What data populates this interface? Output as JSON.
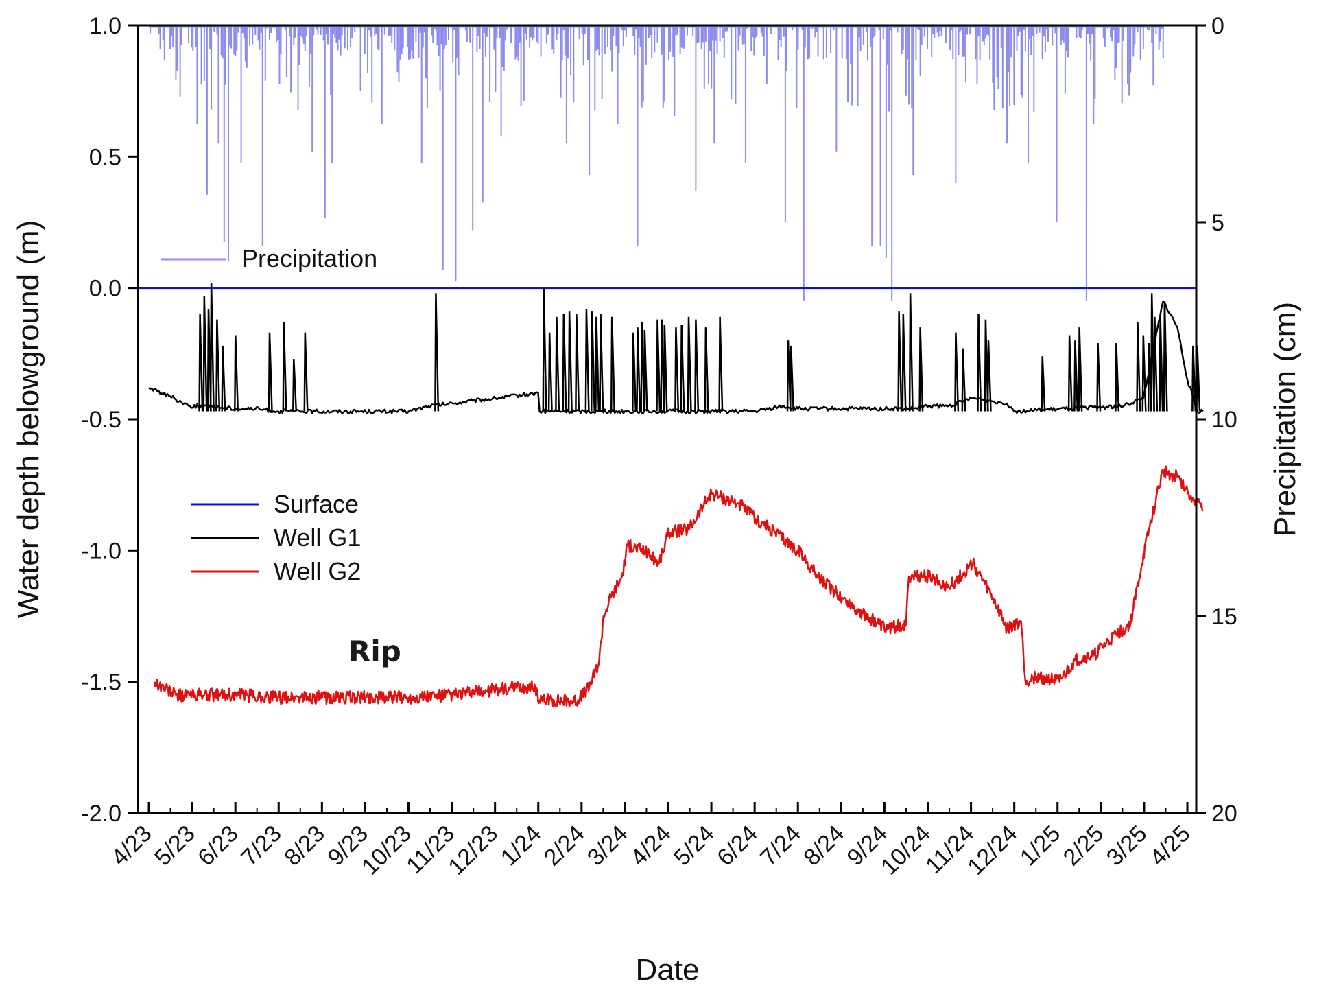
{
  "chart_data": {
    "type": "line",
    "xlabel": "Date",
    "ylabel": "Water depth belowground (m)",
    "y2label": "Precipitation (cm)",
    "annotation": "Rip",
    "ylim": [
      -2.0,
      1.0
    ],
    "y2lim": [
      20,
      0
    ],
    "y2_inverted": true,
    "x_tick_labels": [
      "4/23",
      "5/23",
      "6/23",
      "7/23",
      "8/23",
      "9/23",
      "10/23",
      "11/23",
      "12/23",
      "1/24",
      "2/24",
      "3/24",
      "4/24",
      "5/24",
      "6/24",
      "7/24",
      "8/24",
      "9/24",
      "10/24",
      "11/24",
      "12/24",
      "1/25",
      "2/25",
      "3/25",
      "4/25"
    ],
    "y_tick_labels": [
      "1.0",
      "0.5",
      "0.0",
      "-0.5",
      "-1.0",
      "-1.5",
      "-2.0"
    ],
    "y2_tick_labels": [
      "0",
      "5",
      "10",
      "15",
      "20"
    ],
    "legend": [
      {
        "name": "Surface",
        "color": "#1010c8"
      },
      {
        "name": "Well G1",
        "color": "#000000"
      },
      {
        "name": "Well G2",
        "color": "#e01010"
      }
    ],
    "precip_legend": {
      "name": "Precipitation",
      "color": "#8c8cf0"
    },
    "colors": {
      "surface": "#1010c8",
      "g1": "#000000",
      "g2": "#e01010",
      "precip": "#8c8cf0"
    },
    "series": [
      {
        "name": "Surface",
        "x_start": "2023-04-01",
        "x_end": "2025-04-01",
        "values": [
          0.0,
          0.0
        ]
      },
      {
        "name": "Well G2",
        "points": [
          [
            "2023-04-05",
            -1.5
          ],
          [
            "2023-04-20",
            -1.55
          ],
          [
            "2023-05-10",
            -1.55
          ],
          [
            "2023-06-01",
            -1.55
          ],
          [
            "2023-07-01",
            -1.56
          ],
          [
            "2023-08-01",
            -1.56
          ],
          [
            "2023-09-01",
            -1.56
          ],
          [
            "2023-10-01",
            -1.56
          ],
          [
            "2023-11-01",
            -1.55
          ],
          [
            "2023-12-01",
            -1.53
          ],
          [
            "2023-12-29",
            -1.52
          ],
          [
            "2024-01-01",
            -1.57
          ],
          [
            "2024-01-28",
            -1.57
          ],
          [
            "2024-02-05",
            -1.52
          ],
          [
            "2024-02-12",
            -1.42
          ],
          [
            "2024-02-15",
            -1.25
          ],
          [
            "2024-02-20",
            -1.18
          ],
          [
            "2024-02-28",
            -1.1
          ],
          [
            "2024-03-03",
            -0.98
          ],
          [
            "2024-03-15",
            -1.0
          ],
          [
            "2024-03-25",
            -1.05
          ],
          [
            "2024-04-01",
            -0.93
          ],
          [
            "2024-04-15",
            -0.92
          ],
          [
            "2024-04-25",
            -0.83
          ],
          [
            "2024-05-01",
            -0.78
          ],
          [
            "2024-05-10",
            -0.8
          ],
          [
            "2024-05-20",
            -0.82
          ],
          [
            "2024-06-01",
            -0.88
          ],
          [
            "2024-06-15",
            -0.93
          ],
          [
            "2024-07-01",
            -1.0
          ],
          [
            "2024-07-15",
            -1.1
          ],
          [
            "2024-08-01",
            -1.18
          ],
          [
            "2024-08-15",
            -1.24
          ],
          [
            "2024-09-01",
            -1.3
          ],
          [
            "2024-09-15",
            -1.28
          ],
          [
            "2024-09-17",
            -1.1
          ],
          [
            "2024-10-01",
            -1.1
          ],
          [
            "2024-10-15",
            -1.14
          ],
          [
            "2024-11-01",
            -1.05
          ],
          [
            "2024-11-15",
            -1.18
          ],
          [
            "2024-11-25",
            -1.3
          ],
          [
            "2024-12-05",
            -1.27
          ],
          [
            "2024-12-08",
            -1.5
          ],
          [
            "2024-12-15",
            -1.48
          ],
          [
            "2025-01-01",
            -1.5
          ],
          [
            "2025-01-12",
            -1.42
          ],
          [
            "2025-01-25",
            -1.4
          ],
          [
            "2025-02-10",
            -1.32
          ],
          [
            "2025-02-20",
            -1.28
          ],
          [
            "2025-02-28",
            -1.05
          ],
          [
            "2025-03-10",
            -0.8
          ],
          [
            "2025-03-15",
            -0.7
          ],
          [
            "2025-03-25",
            -0.72
          ],
          [
            "2025-04-05",
            -0.8
          ],
          [
            "2025-04-12",
            -0.85
          ]
        ]
      },
      {
        "name": "Well G1",
        "baseline": -0.47,
        "points": [
          [
            "2023-04-01",
            -0.38
          ],
          [
            "2023-04-15",
            -0.41
          ],
          [
            "2023-04-30",
            -0.45
          ],
          [
            "2023-05-15",
            -0.45
          ],
          [
            "2023-06-01",
            -0.46
          ],
          [
            "2023-06-15",
            -0.46
          ],
          [
            "2023-07-01",
            -0.47
          ],
          [
            "2023-10-01",
            -0.47
          ],
          [
            "2023-10-15",
            -0.45
          ],
          [
            "2023-11-01",
            -0.44
          ],
          [
            "2023-11-15",
            -0.43
          ],
          [
            "2023-12-01",
            -0.42
          ],
          [
            "2023-12-31",
            -0.4
          ],
          [
            "2024-01-01",
            -0.47
          ],
          [
            "2024-06-01",
            -0.47
          ],
          [
            "2024-06-20",
            -0.45
          ],
          [
            "2024-07-01",
            -0.46
          ],
          [
            "2024-09-20",
            -0.46
          ],
          [
            "2024-10-01",
            -0.45
          ],
          [
            "2024-10-15",
            -0.45
          ],
          [
            "2024-11-01",
            -0.42
          ],
          [
            "2024-11-25",
            -0.44
          ],
          [
            "2024-12-01",
            -0.47
          ],
          [
            "2025-02-15",
            -0.45
          ],
          [
            "2025-03-01",
            -0.42
          ],
          [
            "2025-03-15",
            -0.05
          ],
          [
            "2025-03-25",
            -0.15
          ],
          [
            "2025-04-01",
            -0.35
          ],
          [
            "2025-04-08",
            -0.47
          ],
          [
            "2025-04-12",
            -0.47
          ]
        ],
        "spikes": [
          [
            "2023-05-07",
            -0.1
          ],
          [
            "2023-05-10",
            -0.03
          ],
          [
            "2023-05-13",
            -0.08
          ],
          [
            "2023-05-15",
            0.02
          ],
          [
            "2023-05-19",
            -0.12
          ],
          [
            "2023-05-23",
            -0.22
          ],
          [
            "2023-06-01",
            -0.18
          ],
          [
            "2023-06-25",
            -0.17
          ],
          [
            "2023-07-05",
            -0.13
          ],
          [
            "2023-07-12",
            -0.27
          ],
          [
            "2023-07-20",
            -0.17
          ],
          [
            "2023-10-20",
            -0.02
          ],
          [
            "2024-01-04",
            0.0
          ],
          [
            "2024-01-08",
            -0.17
          ],
          [
            "2024-01-13",
            -0.11
          ],
          [
            "2024-01-18",
            -0.1
          ],
          [
            "2024-01-22",
            -0.09
          ],
          [
            "2024-01-27",
            -0.1
          ],
          [
            "2024-02-03",
            -0.08
          ],
          [
            "2024-02-07",
            -0.09
          ],
          [
            "2024-02-10",
            -0.11
          ],
          [
            "2024-02-13",
            -0.1
          ],
          [
            "2024-02-21",
            -0.11
          ],
          [
            "2024-03-07",
            -0.17
          ],
          [
            "2024-03-10",
            -0.15
          ],
          [
            "2024-03-13",
            -0.13
          ],
          [
            "2024-03-15",
            -0.16
          ],
          [
            "2024-03-24",
            -0.12
          ],
          [
            "2024-03-27",
            -0.12
          ],
          [
            "2024-03-29",
            -0.14
          ],
          [
            "2024-04-06",
            -0.15
          ],
          [
            "2024-04-10",
            -0.14
          ],
          [
            "2024-04-15",
            -0.11
          ],
          [
            "2024-04-20",
            -0.12
          ],
          [
            "2024-04-27",
            -0.15
          ],
          [
            "2024-05-07",
            -0.11
          ],
          [
            "2024-06-24",
            -0.2
          ],
          [
            "2024-06-26",
            -0.22
          ],
          [
            "2024-09-10",
            -0.09
          ],
          [
            "2024-09-13",
            -0.1
          ],
          [
            "2024-09-18",
            -0.02
          ],
          [
            "2024-09-25",
            -0.15
          ],
          [
            "2024-10-20",
            -0.17
          ],
          [
            "2024-10-25",
            -0.23
          ],
          [
            "2024-11-05",
            -0.1
          ],
          [
            "2024-11-10",
            -0.12
          ],
          [
            "2024-11-12",
            -0.2
          ],
          [
            "2024-12-20",
            -0.26
          ],
          [
            "2025-01-08",
            -0.18
          ],
          [
            "2025-01-12",
            -0.2
          ],
          [
            "2025-01-15",
            -0.15
          ],
          [
            "2025-01-28",
            -0.21
          ],
          [
            "2025-02-10",
            -0.21
          ],
          [
            "2025-02-25",
            -0.13
          ],
          [
            "2025-03-01",
            -0.18
          ],
          [
            "2025-03-05",
            -0.21
          ],
          [
            "2025-03-07",
            -0.02
          ],
          [
            "2025-03-09",
            -0.11
          ],
          [
            "2025-03-13",
            -0.11
          ],
          [
            "2025-03-16",
            -0.05
          ],
          [
            "2025-04-05",
            -0.22
          ],
          [
            "2025-04-08",
            -0.22
          ]
        ]
      },
      {
        "name": "Precipitation",
        "axis": "y2",
        "unit": "cm",
        "x_start": "2023-04-01",
        "x_end": "2025-03-15",
        "note": "daily bars hanging from the top axis",
        "peaks": [
          [
            "2023-05-05",
            2.5
          ],
          [
            "2023-05-12",
            4.3
          ],
          [
            "2023-05-20",
            3.0
          ],
          [
            "2023-05-24",
            5.5
          ],
          [
            "2023-05-27",
            6.0
          ],
          [
            "2023-06-05",
            3.5
          ],
          [
            "2023-06-20",
            5.6
          ],
          [
            "2023-07-25",
            3.2
          ],
          [
            "2023-08-03",
            4.9
          ],
          [
            "2023-08-08",
            3.5
          ],
          [
            "2023-09-12",
            2.5
          ],
          [
            "2023-10-10",
            3.5
          ],
          [
            "2023-10-25",
            6.2
          ],
          [
            "2023-11-03",
            6.5
          ],
          [
            "2023-11-15",
            5.2
          ],
          [
            "2023-11-22",
            4.5
          ],
          [
            "2023-12-05",
            2.8
          ],
          [
            "2024-01-20",
            3.0
          ],
          [
            "2024-02-05",
            3.8
          ],
          [
            "2024-02-25",
            2.5
          ],
          [
            "2024-03-10",
            5.6
          ],
          [
            "2024-04-05",
            2.3
          ],
          [
            "2024-04-20",
            4.2
          ],
          [
            "2024-05-03",
            3.0
          ],
          [
            "2024-05-25",
            3.5
          ],
          [
            "2024-06-22",
            5.0
          ],
          [
            "2024-07-05",
            7.0
          ],
          [
            "2024-07-28",
            3.2
          ],
          [
            "2024-08-22",
            5.6
          ],
          [
            "2024-08-28",
            5.6
          ],
          [
            "2024-09-01",
            5.9
          ],
          [
            "2024-09-05",
            7.0
          ],
          [
            "2024-09-20",
            3.8
          ],
          [
            "2024-10-20",
            4.0
          ],
          [
            "2024-11-25",
            3.0
          ],
          [
            "2024-12-10",
            3.5
          ],
          [
            "2024-12-30",
            5.0
          ],
          [
            "2025-01-20",
            7.0
          ],
          [
            "2025-01-25",
            2.5
          ],
          [
            "2025-02-18",
            1.5
          ]
        ]
      }
    ]
  }
}
